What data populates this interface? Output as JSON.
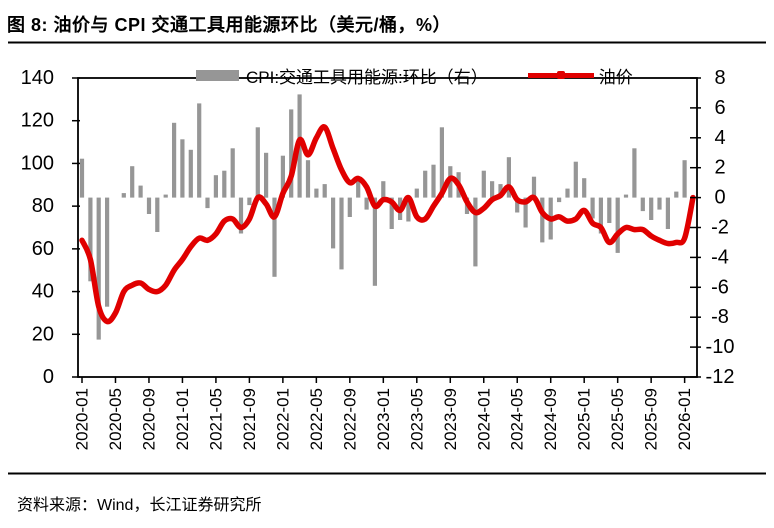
{
  "title": "图 8: 油价与 CPI 交通工具用能源环比（美元/桶，%）",
  "source": "资料来源：Wind，长江证券研究所",
  "colors": {
    "bar": "#969696",
    "line": "#E00000",
    "axis": "#000000"
  },
  "chart_data": {
    "type": "combo",
    "title": "图 8: 油价与 CPI 交通工具用能源环比（美元/桶，%）",
    "grid": false,
    "legend_position": "top-inside",
    "left_axis": {
      "min": 0,
      "max": 140,
      "step": 20,
      "ticks": [
        140,
        120,
        100,
        80,
        60,
        40,
        20,
        0
      ]
    },
    "right_axis": {
      "min": -12,
      "max": 8,
      "step": 2,
      "ticks": [
        8,
        6,
        4,
        2,
        0,
        -2,
        -4,
        -6,
        -8,
        -10,
        -12
      ]
    },
    "x_tick_labels": [
      "2020-01",
      "2020-05",
      "2020-09",
      "2021-01",
      "2021-05",
      "2021-09",
      "2022-01",
      "2022-05",
      "2022-09",
      "2023-01",
      "2023-05",
      "2023-09",
      "2024-01",
      "2024-05",
      "2024-09",
      "2025-01",
      "2025-05",
      "2025-09",
      "2026-01"
    ],
    "categories": [
      "2020-01",
      "2020-02",
      "2020-03",
      "2020-04",
      "2020-05",
      "2020-06",
      "2020-07",
      "2020-08",
      "2020-09",
      "2020-10",
      "2020-11",
      "2020-12",
      "2021-01",
      "2021-02",
      "2021-03",
      "2021-04",
      "2021-05",
      "2021-06",
      "2021-07",
      "2021-08",
      "2021-09",
      "2021-10",
      "2021-11",
      "2021-12",
      "2022-01",
      "2022-02",
      "2022-03",
      "2022-04",
      "2022-05",
      "2022-06",
      "2022-07",
      "2022-08",
      "2022-09",
      "2022-10",
      "2022-11",
      "2022-12",
      "2023-01",
      "2023-02",
      "2023-03",
      "2023-04",
      "2023-05",
      "2023-06",
      "2023-07",
      "2023-08",
      "2023-09",
      "2023-10",
      "2023-11",
      "2023-12",
      "2024-01",
      "2024-02",
      "2024-03",
      "2024-04",
      "2024-05",
      "2024-06",
      "2024-07",
      "2024-08",
      "2024-09",
      "2024-10",
      "2024-11",
      "2024-12",
      "2025-01",
      "2025-02",
      "2025-03",
      "2025-04",
      "2025-05",
      "2025-06",
      "2025-07",
      "2025-08",
      "2025-09",
      "2025-10",
      "2025-11",
      "2025-12",
      "2026-01",
      "2026-02"
    ],
    "series": [
      {
        "name": "CPI:交通工具用能源:环比（右）",
        "type": "bar",
        "axis": "right",
        "unit": "%",
        "color": "#969696",
        "values": [
          2.6,
          -5.6,
          -9.5,
          -7.3,
          0,
          0.3,
          2.1,
          0.8,
          -1.1,
          -2.3,
          0.2,
          5.0,
          3.9,
          3.2,
          6.3,
          -0.7,
          1.5,
          1.8,
          3.3,
          -2.4,
          -0.5,
          4.7,
          3.0,
          -5.3,
          2.8,
          5.9,
          6.9,
          2.5,
          0.6,
          0.9,
          -3.4,
          -4.8,
          -1.3,
          1.3,
          -0.8,
          -5.9,
          1.1,
          -2.1,
          -1.5,
          -1.6,
          0.6,
          1.8,
          2.2,
          4.7,
          2.1,
          1.7,
          -1.1,
          -4.6,
          1.8,
          1.1,
          0.9,
          2.7,
          -1.0,
          -2.0,
          1.4,
          -3.0,
          -2.8,
          -0.3,
          0.6,
          2.4,
          1.3,
          -1.4,
          -2.4,
          -1.7,
          -3.7,
          0.2,
          3.3,
          -0.9,
          -1.5,
          -0.8,
          -2.1,
          0.4,
          2.5,
          null
        ]
      },
      {
        "name": "油价",
        "type": "line",
        "axis": "left",
        "unit": "美元/桶",
        "color": "#E00000",
        "values": [
          64,
          55,
          33,
          26,
          30,
          40,
          43,
          44,
          41,
          40,
          43,
          50,
          55,
          61,
          65,
          64,
          67,
          73,
          74,
          70,
          74,
          84,
          81,
          75,
          86,
          94,
          111,
          104,
          112,
          117,
          107,
          97,
          91,
          93,
          89,
          80,
          83,
          82,
          78,
          84,
          75,
          74,
          80,
          86,
          93,
          90,
          82,
          77,
          79,
          83,
          85,
          89,
          83,
          82,
          84,
          77,
          74,
          75,
          73,
          74,
          78,
          72,
          70,
          63,
          67,
          70,
          69,
          69,
          66,
          64,
          62.5,
          63,
          65,
          84
        ]
      }
    ]
  }
}
